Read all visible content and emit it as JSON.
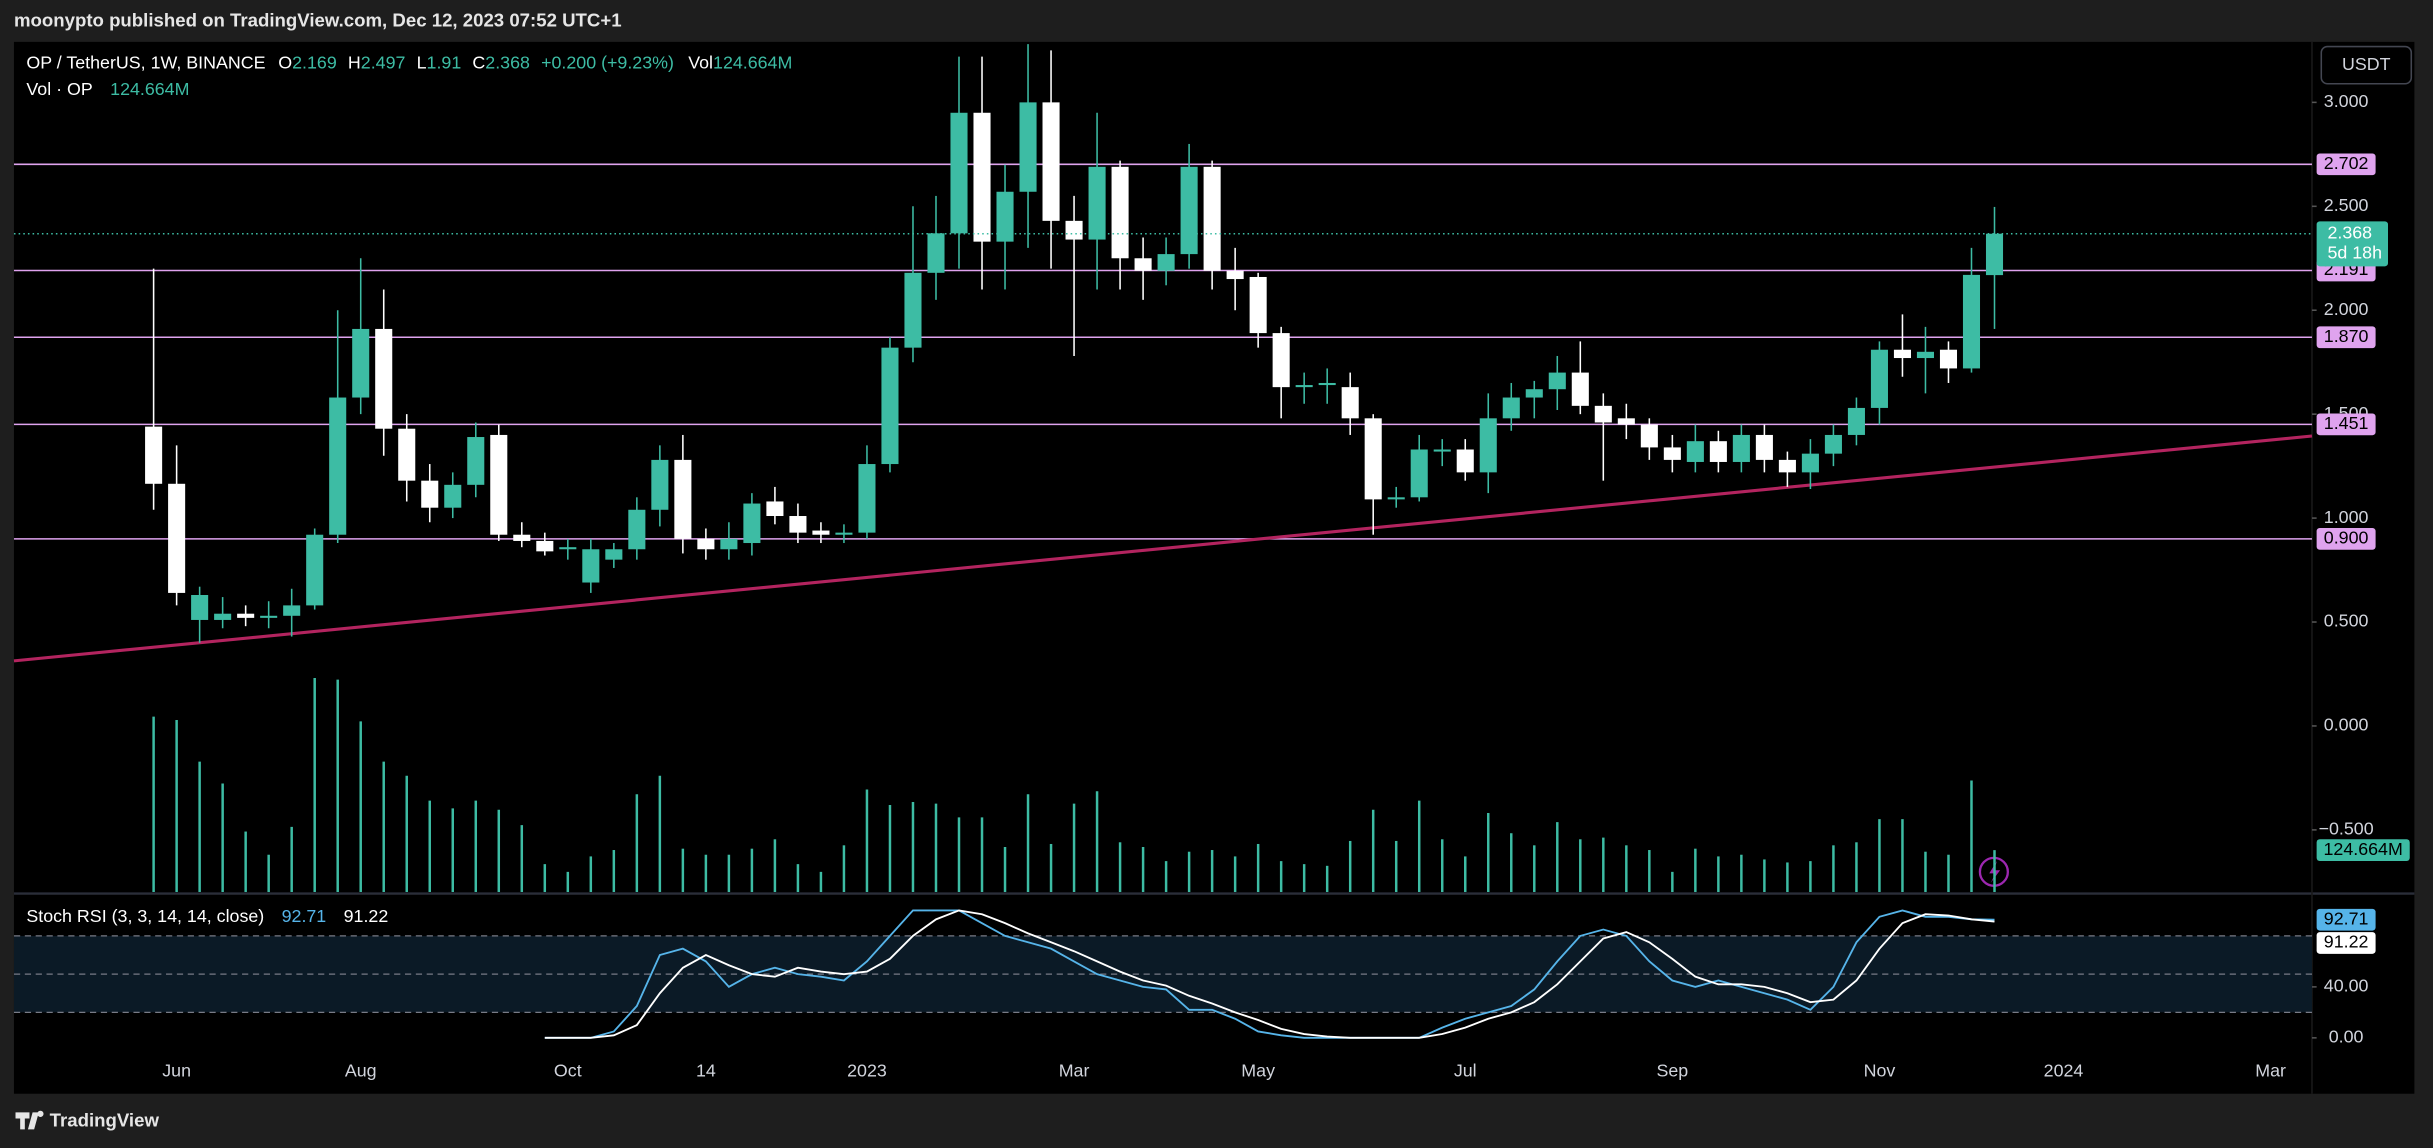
{
  "header": "moonypto published on TradingView.com, Dec 12, 2023 07:52 UTC+1",
  "footer": "TradingView",
  "chart_data": [
    {
      "type": "candlestick",
      "title": "OP / TetherUS, 1W, BINANCE",
      "currency": "USDT",
      "countdown": "5d 18h",
      "legend": {
        "o": "O",
        "h": "H",
        "l": "L",
        "c": "C",
        "change": "+0.200 (+9.23%)",
        "vol": "Vol"
      },
      "up_color": "#3dbca4",
      "down_color": "#ffffff",
      "hline_color": "#dfa3ee",
      "trendline_color": "#b3245f",
      "categories": [
        null,
        "Jun",
        null,
        null,
        null,
        null,
        null,
        null,
        null,
        "Aug",
        null,
        null,
        null,
        null,
        null,
        null,
        null,
        null,
        "Oct",
        null,
        null,
        null,
        null,
        null,
        "14",
        null,
        null,
        null,
        null,
        null,
        null,
        "2023",
        null,
        null,
        null,
        null,
        null,
        null,
        null,
        null,
        "Mar",
        null,
        null,
        null,
        null,
        null,
        null,
        null,
        "May",
        null,
        null,
        null,
        null,
        null,
        null,
        null,
        null,
        "Jul",
        null,
        null,
        null,
        null,
        null,
        null,
        null,
        null,
        "Sep",
        null,
        null,
        null,
        null,
        null,
        null,
        null,
        null,
        "Nov",
        null,
        null,
        null,
        null,
        null,
        null,
        null,
        "2024",
        null,
        null,
        null,
        null,
        null,
        null,
        null,
        null,
        "Mar",
        null
      ],
      "open": [
        1.44,
        1.165,
        0.51,
        0.51,
        0.54,
        0.52,
        0.53,
        0.58,
        0.92,
        1.58,
        1.91,
        1.43,
        1.18,
        1.05,
        1.16,
        1.4,
        0.92,
        0.89,
        0.85,
        0.69,
        0.8,
        0.85,
        1.04,
        1.28,
        0.9,
        0.85,
        0.88,
        1.08,
        1.01,
        0.94,
        0.92,
        0.93,
        1.26,
        1.82,
        2.18,
        2.37,
        2.95,
        2.33,
        2.57,
        3.0,
        2.43,
        2.34,
        2.69,
        2.25,
        2.19,
        2.27,
        2.69,
        2.19,
        2.16,
        1.89,
        1.63,
        1.64,
        1.63,
        1.48,
        1.09,
        1.1,
        1.32,
        1.33,
        1.22,
        1.48,
        1.58,
        1.62,
        1.7,
        1.54,
        1.48,
        1.45,
        1.34,
        1.27,
        1.37,
        1.27,
        1.4,
        1.28,
        1.22,
        1.31,
        1.4,
        1.53,
        1.81,
        1.77,
        1.81,
        1.72,
        2.169,
        null,
        null,
        null,
        null,
        null,
        null,
        null,
        null,
        null,
        null,
        null,
        null,
        null
      ],
      "high": [
        2.2,
        1.35,
        0.67,
        0.62,
        0.58,
        0.6,
        0.66,
        0.95,
        2.0,
        2.25,
        2.1,
        1.5,
        1.26,
        1.22,
        1.46,
        1.45,
        0.98,
        0.93,
        0.9,
        0.9,
        0.88,
        1.1,
        1.35,
        1.4,
        0.95,
        0.98,
        1.12,
        1.15,
        1.07,
        0.98,
        0.97,
        1.35,
        1.87,
        2.5,
        2.55,
        3.22,
        3.22,
        2.7,
        3.28,
        3.25,
        2.55,
        2.95,
        2.72,
        2.35,
        2.35,
        2.8,
        2.72,
        2.3,
        2.18,
        1.92,
        1.7,
        1.72,
        1.7,
        1.5,
        1.15,
        1.4,
        1.38,
        1.38,
        1.6,
        1.65,
        1.66,
        1.78,
        1.85,
        1.6,
        1.55,
        1.48,
        1.4,
        1.45,
        1.42,
        1.45,
        1.45,
        1.32,
        1.38,
        1.45,
        1.58,
        1.85,
        1.98,
        1.92,
        1.85,
        2.3,
        2.497,
        null,
        null,
        null,
        null,
        null,
        null,
        null,
        null,
        null,
        null,
        null,
        null,
        null
      ],
      "low": [
        1.04,
        0.58,
        0.4,
        0.47,
        0.48,
        0.47,
        0.43,
        0.56,
        0.88,
        1.5,
        1.3,
        1.08,
        0.98,
        1.0,
        1.1,
        0.89,
        0.86,
        0.82,
        0.8,
        0.64,
        0.76,
        0.8,
        0.96,
        0.83,
        0.8,
        0.8,
        0.82,
        0.97,
        0.88,
        0.88,
        0.88,
        0.9,
        1.22,
        1.75,
        2.05,
        2.2,
        2.1,
        2.1,
        2.3,
        2.2,
        1.78,
        2.1,
        2.1,
        2.05,
        2.12,
        2.2,
        2.1,
        2.0,
        1.82,
        1.48,
        1.55,
        1.55,
        1.4,
        0.92,
        1.05,
        1.08,
        1.25,
        1.18,
        1.12,
        1.42,
        1.48,
        1.52,
        1.5,
        1.18,
        1.38,
        1.28,
        1.22,
        1.22,
        1.22,
        1.22,
        1.22,
        1.15,
        1.14,
        1.25,
        1.35,
        1.45,
        1.68,
        1.6,
        1.65,
        1.7,
        1.91,
        null,
        null,
        null,
        null,
        null,
        null,
        null,
        null,
        null,
        null,
        null,
        null,
        null
      ],
      "close": [
        1.165,
        0.64,
        0.63,
        0.54,
        0.52,
        0.53,
        0.58,
        0.92,
        1.58,
        1.91,
        1.43,
        1.18,
        1.05,
        1.16,
        1.39,
        0.92,
        0.89,
        0.84,
        0.86,
        0.85,
        0.85,
        1.04,
        1.28,
        0.9,
        0.85,
        0.9,
        1.07,
        1.01,
        0.93,
        0.92,
        0.93,
        1.26,
        1.82,
        2.18,
        2.37,
        2.95,
        2.33,
        2.57,
        3.0,
        2.43,
        2.34,
        2.69,
        2.25,
        2.19,
        2.27,
        2.69,
        2.19,
        2.15,
        1.89,
        1.63,
        1.64,
        1.65,
        1.48,
        1.09,
        1.1,
        1.33,
        1.33,
        1.22,
        1.48,
        1.58,
        1.62,
        1.7,
        1.54,
        1.46,
        1.45,
        1.34,
        1.28,
        1.37,
        1.27,
        1.4,
        1.28,
        1.22,
        1.31,
        1.4,
        1.53,
        1.81,
        1.77,
        1.8,
        1.72,
        2.17,
        2.368,
        null,
        null,
        null,
        null,
        null,
        null,
        null,
        null,
        null,
        null,
        null,
        null,
        null
      ],
      "ylim": [
        -0.799,
        3.291
      ],
      "yticks": [
        {
          "value": 3,
          "label": "3.000"
        },
        {
          "value": 2.5,
          "label": "2.500"
        },
        {
          "value": 2,
          "label": "2.000"
        },
        {
          "value": 1.5,
          "label": "1.500"
        },
        {
          "value": 1,
          "label": "1.000"
        },
        {
          "value": 0.5,
          "label": "0.500"
        },
        {
          "value": 0,
          "label": "0.000"
        },
        {
          "value": -0.5,
          "label": "−0.500"
        }
      ],
      "hlines": [
        2.702,
        2.191,
        {
          "value": 1.87,
          "label": "1.870"
        },
        1.451,
        {
          "value": 0.9,
          "label": "0.900"
        }
      ],
      "trendline": [
        0.313,
        1.395
      ]
    },
    {
      "type": "bar",
      "title": "Vol · OP",
      "color": "#3dbca4",
      "volume_label": "124.664M",
      "ylim": [
        0,
        2530
      ],
      "values": [
        522,
        512,
        388,
        323,
        180,
        111,
        194,
        637,
        632,
        508,
        388,
        346,
        272,
        249,
        272,
        245,
        199,
        83,
        60,
        106,
        125,
        291,
        346,
        129,
        111,
        111,
        129,
        157,
        83,
        60,
        139,
        305,
        259,
        268,
        263,
        222,
        222,
        134,
        291,
        143,
        263,
        300,
        148,
        134,
        92,
        120,
        125,
        106,
        143,
        92,
        83,
        78,
        152,
        245,
        152,
        272,
        157,
        106,
        235,
        175,
        139,
        208,
        157,
        162,
        139,
        125,
        60,
        129,
        106,
        111,
        97,
        88,
        92,
        139,
        148,
        217,
        217,
        120,
        111,
        332,
        124.664,
        null,
        null,
        null,
        null,
        null,
        null,
        null,
        null,
        null,
        null,
        null,
        null,
        null
      ]
    },
    {
      "type": "line",
      "title": "Stoch RSI (3, 3, 14, 14, close)",
      "ylim": [
        -13.4,
        112
      ],
      "yticks": [
        {
          "value": 40,
          "label": "40.00"
        },
        {
          "value": 0,
          "label": "0.00"
        }
      ],
      "levels": [
        80,
        50,
        20
      ],
      "series": [
        {
          "color": "#56b4e9",
          "values": [
            null,
            null,
            null,
            null,
            null,
            null,
            null,
            null,
            null,
            null,
            null,
            null,
            null,
            null,
            null,
            null,
            null,
            0,
            0,
            0,
            5,
            25,
            65,
            70,
            60,
            40,
            50,
            55,
            50,
            48,
            45,
            60,
            80,
            100,
            100,
            100,
            90,
            80,
            75,
            70,
            60,
            50,
            45,
            40,
            38,
            22,
            22,
            15,
            5,
            2,
            0,
            0,
            0,
            0,
            0,
            0,
            8,
            15,
            20,
            25,
            38,
            60,
            80,
            85,
            80,
            60,
            45,
            40,
            45,
            40,
            35,
            30,
            22,
            40,
            75,
            95,
            100,
            95,
            95,
            93,
            92.71,
            null,
            null,
            null,
            null,
            null,
            null,
            null,
            null,
            null,
            null,
            null,
            null,
            null
          ]
        },
        {
          "color": "#ffffff",
          "values": [
            null,
            null,
            null,
            null,
            null,
            null,
            null,
            null,
            null,
            null,
            null,
            null,
            null,
            null,
            null,
            null,
            null,
            0,
            0,
            0,
            2,
            10,
            35,
            55,
            65,
            57,
            50,
            48,
            55,
            52,
            50,
            52,
            62,
            80,
            93,
            100,
            97,
            90,
            82,
            75,
            68,
            60,
            52,
            45,
            41,
            33,
            27,
            20,
            14,
            7,
            3,
            1,
            0,
            0,
            0,
            0,
            3,
            8,
            15,
            20,
            28,
            42,
            60,
            78,
            83,
            75,
            62,
            48,
            42,
            42,
            40,
            35,
            28,
            30,
            45,
            70,
            90,
            97,
            96,
            93,
            91.22,
            null,
            null,
            null,
            null,
            null,
            null,
            null,
            null,
            null,
            null,
            null,
            null,
            null
          ]
        }
      ]
    }
  ]
}
